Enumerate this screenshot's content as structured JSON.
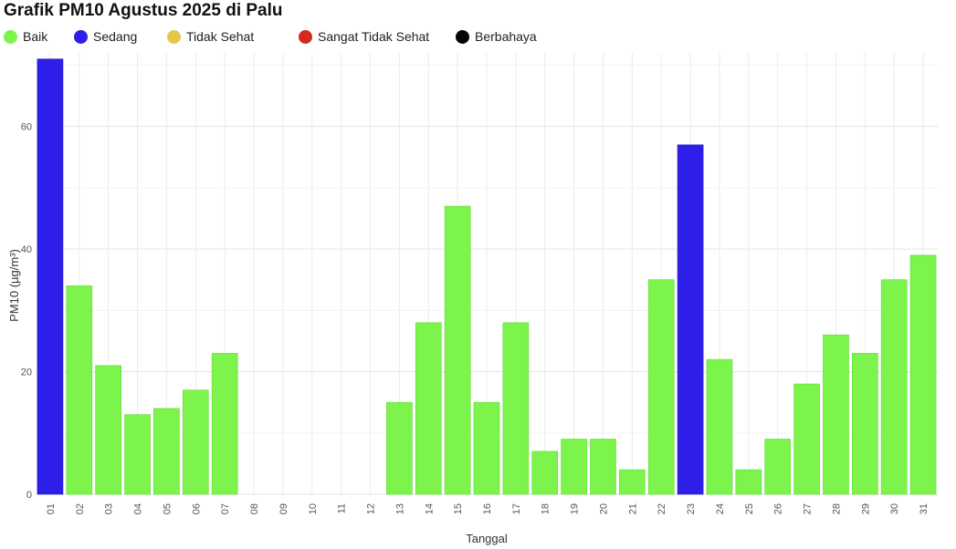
{
  "chart_data": {
    "type": "bar",
    "title": "Grafik PM10 Agustus 2025 di Palu",
    "xlabel": "Tanggal",
    "ylabel": "PM10 (µg/m³)",
    "ylim": [
      0,
      72
    ],
    "yticks": [
      0,
      20,
      40,
      60
    ],
    "grid": true,
    "legend_position": "top-left",
    "legend": [
      {
        "label": "Baik",
        "color": "#7CF44C"
      },
      {
        "label": "Sedang",
        "color": "#2D1FE8"
      },
      {
        "label": "Tidak Sehat",
        "color": "#E5C84A"
      },
      {
        "label": "Sangat Tidak Sehat",
        "color": "#D42A22"
      },
      {
        "label": "Berbahaya",
        "color": "#050505"
      }
    ],
    "categories": [
      "01",
      "02",
      "03",
      "04",
      "05",
      "06",
      "07",
      "08",
      "09",
      "10",
      "11",
      "12",
      "13",
      "14",
      "15",
      "16",
      "17",
      "18",
      "19",
      "20",
      "21",
      "22",
      "23",
      "24",
      "25",
      "26",
      "27",
      "28",
      "29",
      "30",
      "31"
    ],
    "values": [
      71,
      34,
      21,
      13,
      14,
      17,
      23,
      null,
      null,
      null,
      null,
      null,
      15,
      28,
      47,
      15,
      28,
      7,
      9,
      9,
      4,
      35,
      57,
      22,
      4,
      9,
      18,
      26,
      23,
      35,
      39
    ],
    "categories_status": [
      "Sedang",
      "Baik",
      "Baik",
      "Baik",
      "Baik",
      "Baik",
      "Baik",
      null,
      null,
      null,
      null,
      null,
      "Baik",
      "Baik",
      "Baik",
      "Baik",
      "Baik",
      "Baik",
      "Baik",
      "Baik",
      "Baik",
      "Baik",
      "Sedang",
      "Baik",
      "Baik",
      "Baik",
      "Baik",
      "Baik",
      "Baik",
      "Baik",
      "Baik"
    ]
  }
}
